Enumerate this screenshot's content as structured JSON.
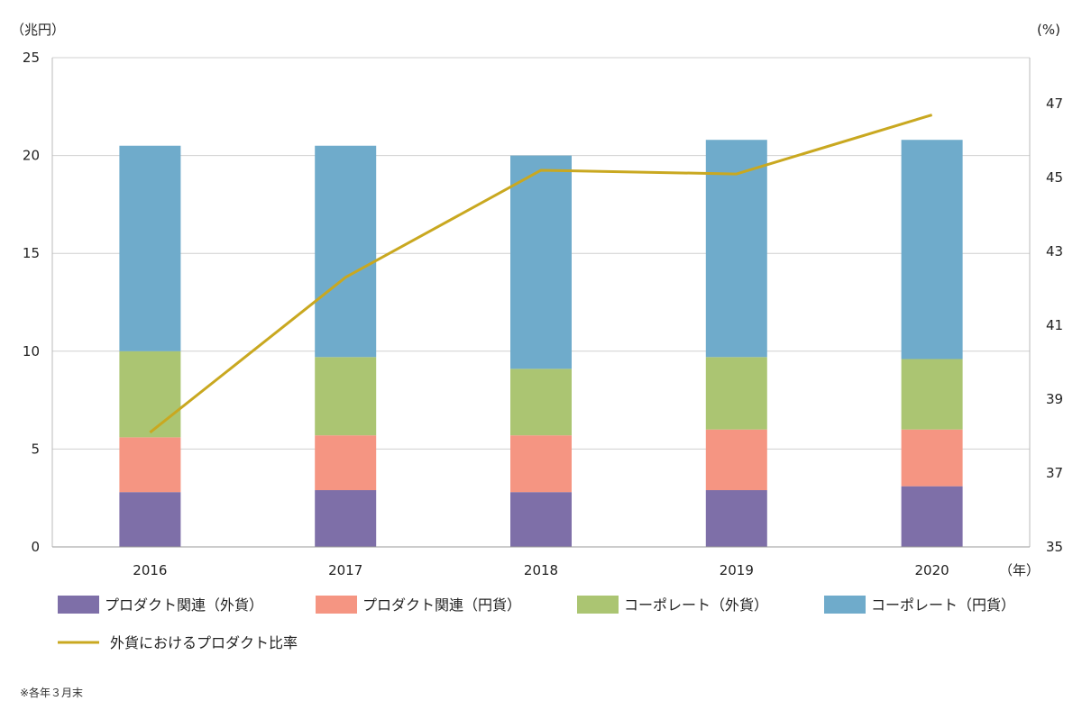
{
  "chart_data": {
    "type": "bar",
    "stacked": true,
    "categories": [
      "2016",
      "2017",
      "2018",
      "2019",
      "2020"
    ],
    "x_unit": "（年）",
    "y_left_unit": "（兆円）",
    "y_right_unit": "(%)",
    "y_left": {
      "ylim": [
        0,
        25
      ],
      "ticks": [
        "0",
        "5",
        "10",
        "15",
        "20",
        "25"
      ]
    },
    "y_right": {
      "ylim": [
        35,
        48.25
      ],
      "ticks": [
        "35",
        "37",
        "39",
        "41",
        "43",
        "45",
        "47"
      ]
    },
    "grid": true,
    "legend_position": "bottom",
    "series": [
      {
        "name": "プロダクト関連（外貨）",
        "color": "#7e6fa8",
        "values": [
          2.8,
          2.9,
          2.8,
          2.9,
          3.1
        ]
      },
      {
        "name": "プロダクト関連（円貨）",
        "color": "#f59582",
        "values": [
          2.8,
          2.8,
          2.9,
          3.1,
          2.9
        ]
      },
      {
        "name": "コーポレート（外貨）",
        "color": "#abc572",
        "values": [
          4.4,
          4.0,
          3.4,
          3.7,
          3.6
        ]
      },
      {
        "name": "コーポレート（円貨）",
        "color": "#6fabcb",
        "values": [
          10.5,
          10.8,
          10.9,
          11.1,
          11.2
        ]
      }
    ],
    "line": {
      "name": "外貨におけるプロダクト比率",
      "color": "#c9a820",
      "axis": "right",
      "values": [
        38.1,
        42.3,
        45.2,
        45.1,
        46.7
      ]
    }
  },
  "footnote": "※各年３月末"
}
